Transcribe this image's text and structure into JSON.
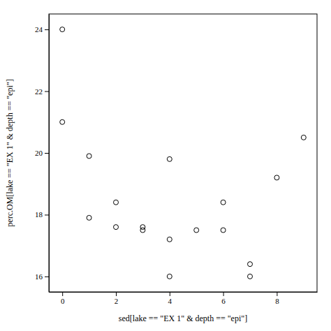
{
  "chart_data": {
    "type": "scatter",
    "x": [
      0,
      0,
      1,
      1,
      2,
      2,
      3,
      3,
      4,
      4,
      4,
      5,
      6,
      6,
      7,
      7,
      8,
      9
    ],
    "y": [
      24.0,
      21.0,
      19.9,
      17.9,
      18.4,
      17.6,
      17.6,
      17.5,
      19.8,
      17.2,
      16.0,
      17.5,
      18.4,
      17.5,
      16.4,
      16.0,
      19.2,
      20.5
    ],
    "xlabel": "sed[lake == \"EX 1\" & depth == \"epi\"]",
    "ylabel": "perc.OM[lake == \"EX 1\" & depth == \"epi\"]",
    "xlim": [
      -0.5,
      9.5
    ],
    "ylim": [
      15.5,
      24.5
    ],
    "xticks": [
      0,
      2,
      4,
      6,
      8
    ],
    "yticks": [
      16,
      18,
      20,
      22,
      24
    ],
    "color": "#000000",
    "marker": "open-circle"
  }
}
